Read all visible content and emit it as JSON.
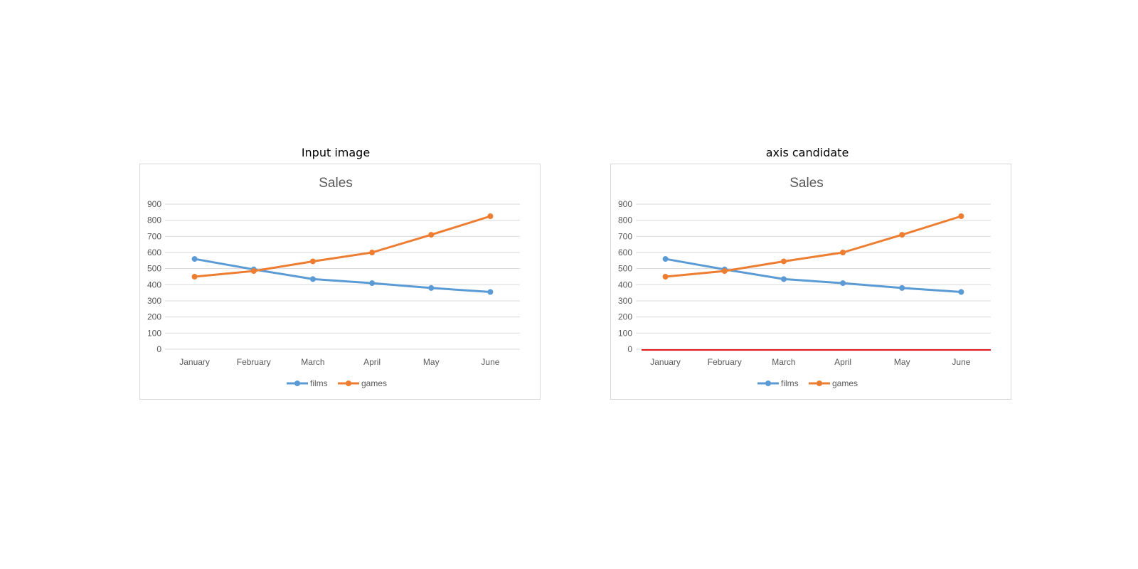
{
  "panels": [
    {
      "title": "Input image"
    },
    {
      "title": "axis candidate",
      "overlay_color": "#e31a1c"
    }
  ],
  "chart_data": [
    {
      "type": "line",
      "title": "Sales",
      "categories": [
        "January",
        "February",
        "March",
        "April",
        "May",
        "June"
      ],
      "series": [
        {
          "name": "films",
          "color": "#5b9bd5",
          "values": [
            560,
            495,
            435,
            410,
            380,
            355
          ]
        },
        {
          "name": "games",
          "color": "#ed7d31",
          "values": [
            450,
            485,
            545,
            600,
            710,
            825
          ]
        }
      ],
      "ylim": [
        0,
        900
      ],
      "yticks": [
        "0",
        "100",
        "200",
        "300",
        "400",
        "500",
        "600",
        "700",
        "800",
        "900"
      ],
      "grid": true,
      "legend": "bottom"
    },
    {
      "type": "line",
      "title": "Sales",
      "categories": [
        "January",
        "February",
        "March",
        "April",
        "May",
        "June"
      ],
      "series": [
        {
          "name": "films",
          "color": "#5b9bd5",
          "values": [
            560,
            495,
            435,
            410,
            380,
            355
          ]
        },
        {
          "name": "games",
          "color": "#ed7d31",
          "values": [
            450,
            485,
            545,
            600,
            710,
            825
          ]
        }
      ],
      "ylim": [
        0,
        900
      ],
      "yticks": [
        "0",
        "100",
        "200",
        "300",
        "400",
        "500",
        "600",
        "700",
        "800",
        "900"
      ],
      "grid": true,
      "legend": "bottom",
      "highlighted_axis": "x-axis"
    }
  ]
}
